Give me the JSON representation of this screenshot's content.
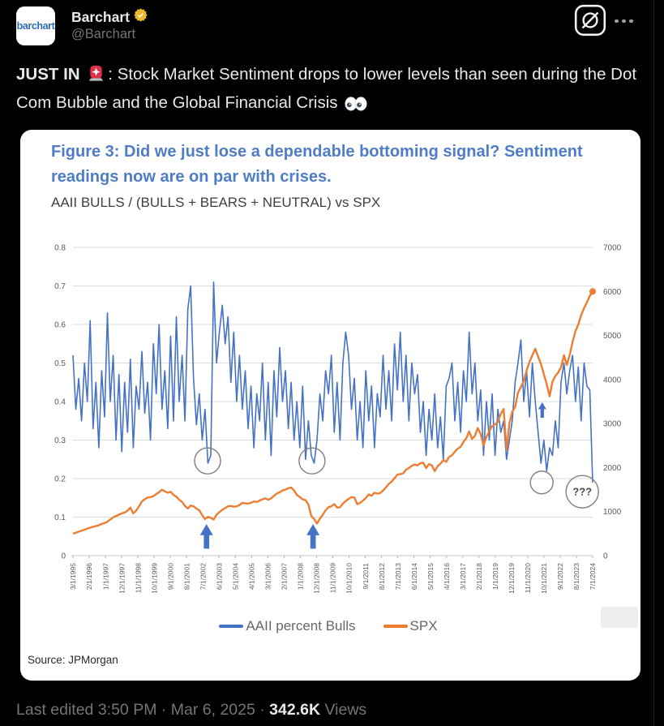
{
  "header": {
    "display_name": "Barchart",
    "handle": "@Barchart",
    "avatar_text": "barchart",
    "badge_color": "#E8B62C"
  },
  "tweet": {
    "bold_prefix": "JUST IN ",
    "siren_icon": "police-car-light-emoji",
    "body": ": Stock Market Sentiment drops to lower levels than seen during the Dot Com Bubble and the Global Financial Crisis ",
    "eyes_icon": "eyes-emoji"
  },
  "figure": {
    "title": "Figure 3: Did we just lose a dependable bottoming signal? Sentiment readings now are on par with crises.",
    "subtitle": "AAII BULLS / (BULLS + BEARS + NEUTRAL) vs SPX",
    "source": "Source: JPMorgan"
  },
  "chart_data": {
    "type": "line",
    "title": "AAII BULLS / (BULLS + BEARS + NEUTRAL) vs SPX",
    "x_start": "3/1/1995",
    "x_end": "7/1/2024",
    "left_axis": {
      "min": 0,
      "max": 0.8,
      "ticks": [
        0,
        0.1,
        0.2,
        0.3,
        0.4,
        0.5,
        0.6,
        0.7,
        0.8
      ]
    },
    "right_axis": {
      "min": 0,
      "max": 7000,
      "ticks": [
        0,
        1000,
        2000,
        3000,
        4000,
        5000,
        6000,
        7000
      ]
    },
    "x_tick_labels": [
      "3/1/1995",
      "2/1/1996",
      "1/1/1997",
      "12/1/1997",
      "11/1/1998",
      "10/1/1999",
      "9/1/2000",
      "8/1/2001",
      "7/1/2002",
      "6/1/2003",
      "5/1/2004",
      "4/1/2005",
      "3/1/2006",
      "2/1/2007",
      "1/1/2008",
      "12/1/2008",
      "11/1/2009",
      "10/1/2010",
      "9/1/2011",
      "8/1/2012",
      "7/1/2013",
      "6/1/2014",
      "5/1/2015",
      "4/1/2016",
      "3/1/2017",
      "2/1/2018",
      "1/1/2019",
      "12/1/2019",
      "11/1/2020",
      "10/1/2021",
      "9/1/2022",
      "8/1/2023",
      "7/1/2024"
    ],
    "legend": [
      "AAII percent Bulls",
      "SPX"
    ],
    "colors": {
      "bulls": "#4472C4",
      "spx": "#ED7D31",
      "grid": "#DBDBDB",
      "axis_text": "#595959",
      "annotation": "#7F7F7F",
      "title": "#4F7DC5"
    },
    "series": [
      {
        "name": "AAII percent Bulls",
        "axis": "left",
        "color": "#4472C4",
        "values": [
          0.52,
          0.38,
          0.46,
          0.35,
          0.5,
          0.4,
          0.61,
          0.33,
          0.45,
          0.28,
          0.48,
          0.36,
          0.63,
          0.4,
          0.52,
          0.3,
          0.47,
          0.27,
          0.45,
          0.32,
          0.51,
          0.28,
          0.44,
          0.38,
          0.53,
          0.37,
          0.45,
          0.3,
          0.55,
          0.42,
          0.6,
          0.38,
          0.48,
          0.33,
          0.57,
          0.35,
          0.62,
          0.4,
          0.52,
          0.35,
          0.64,
          0.7,
          0.46,
          0.34,
          0.42,
          0.3,
          0.38,
          0.24,
          0.26,
          0.71,
          0.5,
          0.58,
          0.65,
          0.55,
          0.62,
          0.45,
          0.58,
          0.4,
          0.52,
          0.38,
          0.48,
          0.33,
          0.44,
          0.28,
          0.42,
          0.35,
          0.5,
          0.3,
          0.45,
          0.26,
          0.48,
          0.36,
          0.54,
          0.4,
          0.48,
          0.33,
          0.45,
          0.3,
          0.4,
          0.28,
          0.44,
          0.25,
          0.35,
          0.26,
          0.24,
          0.3,
          0.42,
          0.35,
          0.48,
          0.42,
          0.52,
          0.32,
          0.45,
          0.3,
          0.5,
          0.58,
          0.52,
          0.38,
          0.46,
          0.3,
          0.4,
          0.28,
          0.48,
          0.35,
          0.44,
          0.28,
          0.42,
          0.36,
          0.52,
          0.38,
          0.48,
          0.35,
          0.55,
          0.43,
          0.58,
          0.4,
          0.52,
          0.35,
          0.5,
          0.42,
          0.47,
          0.32,
          0.4,
          0.26,
          0.38,
          0.3,
          0.42,
          0.28,
          0.36,
          0.25,
          0.44,
          0.46,
          0.5,
          0.35,
          0.45,
          0.32,
          0.48,
          0.4,
          0.58,
          0.42,
          0.5,
          0.35,
          0.43,
          0.26,
          0.4,
          0.3,
          0.42,
          0.26,
          0.38,
          0.32,
          0.35,
          0.25,
          0.3,
          0.35,
          0.45,
          0.5,
          0.56,
          0.4,
          0.48,
          0.36,
          0.5,
          0.4,
          0.32,
          0.24,
          0.3,
          0.22,
          0.28,
          0.26,
          0.35,
          0.28,
          0.45,
          0.5,
          0.42,
          0.48,
          0.52,
          0.4,
          0.49,
          0.35,
          0.5,
          0.44,
          0.43,
          0.19
        ]
      },
      {
        "name": "SPX",
        "axis": "right",
        "color": "#ED7D31",
        "values": [
          500,
          520,
          545,
          565,
          590,
          615,
          635,
          655,
          670,
          690,
          720,
          740,
          770,
          820,
          870,
          900,
          930,
          960,
          980,
          1020,
          1090,
          960,
          1020,
          1120,
          1230,
          1280,
          1320,
          1330,
          1350,
          1400,
          1440,
          1500,
          1460,
          1430,
          1450,
          1380,
          1340,
          1270,
          1220,
          1130,
          1070,
          1140,
          1120,
          1070,
          1030,
          920,
          830,
          880,
          860,
          820,
          930,
          990,
          1040,
          1080,
          1120,
          1130,
          1110,
          1120,
          1150,
          1200,
          1190,
          1180,
          1200,
          1230,
          1220,
          1250,
          1280,
          1300,
          1270,
          1300,
          1360,
          1410,
          1440,
          1480,
          1500,
          1530,
          1550,
          1480,
          1380,
          1330,
          1280,
          1260,
          1160,
          900,
          830,
          730,
          840,
          930,
          1030,
          1100,
          1120,
          1170,
          1090,
          1100,
          1180,
          1240,
          1290,
          1330,
          1320,
          1170,
          1200,
          1250,
          1310,
          1390,
          1360,
          1430,
          1410,
          1420,
          1480,
          1550,
          1630,
          1680,
          1760,
          1840,
          1850,
          1870,
          1950,
          1990,
          2040,
          2070,
          2050,
          2100,
          2110,
          1990,
          2080,
          2050,
          1920,
          2030,
          2090,
          2170,
          2130,
          2240,
          2280,
          2360,
          2430,
          2470,
          2580,
          2670,
          2820,
          2650,
          2720,
          2900,
          2760,
          2500,
          2700,
          2830,
          2940,
          2980,
          3040,
          3220,
          3330,
          2400,
          3000,
          3270,
          3380,
          3700,
          3830,
          3970,
          4200,
          4400,
          4550,
          4700,
          4520,
          4350,
          4120,
          3900,
          3620,
          3950,
          4080,
          4160,
          4280,
          4550,
          4330,
          4560,
          4850,
          5100,
          5250,
          5460,
          5620,
          5750,
          5900,
          6000
        ]
      }
    ],
    "annotations": {
      "circles": [
        {
          "xf": 0.259,
          "v": 0.246,
          "r": 16
        },
        {
          "xf": 0.46,
          "v": 0.246,
          "r": 16
        },
        {
          "xf": 0.902,
          "v": 0.19,
          "r": 14
        },
        {
          "xf": 0.98,
          "v": 0.166,
          "r": 20,
          "label": "???"
        }
      ],
      "arrows": [
        {
          "xf": 0.257,
          "v0": 0.018,
          "v1": 0.082,
          "w": 16
        },
        {
          "xf": 0.462,
          "v0": 0.018,
          "v1": 0.082,
          "w": 16
        },
        {
          "xf": 0.903,
          "v0": 0.358,
          "v1": 0.398,
          "w": 10
        }
      ]
    }
  },
  "footer": {
    "meta": "Last edited 3:50 PM · Mar 6, 2025 ·",
    "views_count": "342.6K",
    "views_label": "Views"
  }
}
